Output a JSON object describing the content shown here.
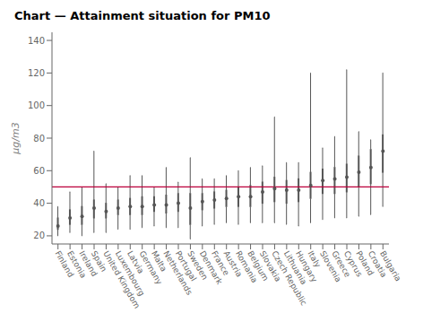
{
  "chart_data": {
    "type": "box",
    "title": "Chart — Attainment situation for PM10",
    "ylabel": "μg/m3",
    "categories": [
      "Finland",
      "Estonia",
      "Ireland",
      "Spain",
      "United Kingdom",
      "Luxembourg",
      "Latvia",
      "Germany",
      "Malta",
      "Netherlands",
      "Portugal",
      "Sweden",
      "Denmark",
      "France",
      "Austria",
      "Romania",
      "Belgium",
      "Slovakia",
      "Czech Republic",
      "Lithuania",
      "Hungary",
      "Italy",
      "Slovenia",
      "Greece",
      "Cyprus",
      "Poland",
      "Croatia",
      "Bulgaria"
    ],
    "whislo": [
      20,
      22,
      20,
      22,
      22,
      24,
      24,
      25,
      26,
      25,
      25,
      18,
      26,
      27,
      28,
      27,
      28,
      28,
      28,
      27,
      26,
      28,
      30,
      31,
      31,
      32,
      33,
      38
    ],
    "q1": [
      24,
      27,
      27,
      31,
      31,
      33,
      33,
      33,
      35,
      34,
      35,
      27,
      36,
      37,
      38,
      38,
      38,
      40,
      41,
      40,
      41,
      43,
      46,
      46,
      47,
      50,
      52,
      59
    ],
    "med": [
      27,
      31,
      33,
      36,
      35,
      37,
      38,
      38,
      39,
      39,
      40,
      37,
      41,
      42,
      43,
      44,
      44,
      47,
      48,
      47,
      48,
      50,
      53,
      54,
      55,
      59,
      62,
      71
    ],
    "q3": [
      31,
      36,
      38,
      42,
      40,
      42,
      43,
      44,
      44,
      45,
      46,
      46,
      46,
      47,
      48,
      50,
      51,
      53,
      56,
      54,
      55,
      59,
      61,
      62,
      64,
      69,
      73,
      82
    ],
    "whishi": [
      38,
      47,
      50,
      72,
      52,
      50,
      57,
      57,
      50,
      62,
      53,
      68,
      55,
      55,
      57,
      60,
      62,
      63,
      93,
      65,
      65,
      120,
      74,
      81,
      122,
      84,
      79,
      120
    ],
    "mean": [
      26,
      31,
      32,
      37,
      35,
      37,
      38,
      38,
      39,
      39,
      40,
      37,
      41,
      42,
      43,
      44,
      44,
      47,
      49,
      48,
      48,
      51,
      54,
      55,
      56,
      59,
      62,
      72
    ],
    "color": "#555555",
    "reference_line": {
      "value": 50,
      "color": "#bb003b"
    },
    "ylim": [
      15,
      145
    ],
    "yticks": [
      20,
      40,
      60,
      80,
      100,
      120,
      140
    ],
    "grid": false
  }
}
